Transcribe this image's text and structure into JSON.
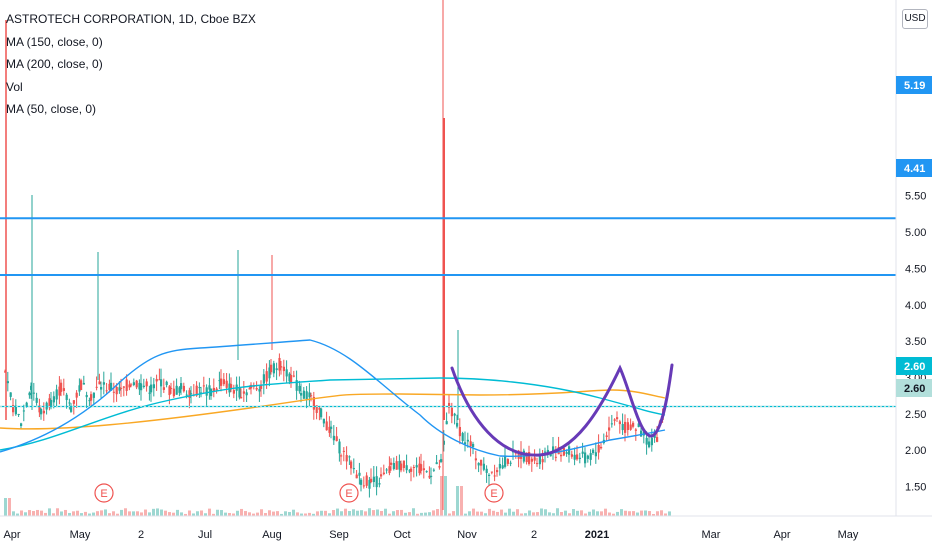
{
  "chart_data": {
    "type": "candlestick",
    "title": "ASTROTECH CORPORATION, 1D, Cboe BZX",
    "currency": "USD",
    "indicators": [
      "MA (150, close, 0)",
      "MA (200, close, 0)",
      "Vol",
      "MA (50, close, 0)"
    ],
    "x_tick_labels": [
      "Apr",
      "May",
      "2",
      "Jul",
      "Aug",
      "Sep",
      "Oct",
      "Nov",
      "2",
      "2021",
      "Mar",
      "Apr",
      "May"
    ],
    "y_tick_labels": [
      "5.50",
      "5.00",
      "4.50",
      "4.00",
      "3.50",
      "3.00",
      "2.50",
      "2.00",
      "1.50"
    ],
    "y_range": [
      1.2,
      5.85
    ],
    "price_labels": [
      {
        "value": "5.19",
        "color": "#2196f3"
      },
      {
        "value": "4.41",
        "color": "#2196f3"
      },
      {
        "value": "2.60",
        "color": "#00bcd4"
      },
      {
        "value": "2.60",
        "color": "#26a69a"
      }
    ],
    "horizontal_levels": [
      {
        "price": 5.19,
        "color": "#2196f3"
      },
      {
        "price": 4.41,
        "color": "#2196f3"
      },
      {
        "price": 2.6,
        "color": "#00bcd4"
      }
    ],
    "earnings_markers": [
      "E",
      "E",
      "E"
    ],
    "colors": {
      "up": "#26a69a",
      "down": "#ef5350",
      "ma50": "#2196f3",
      "ma150": "#00bcd4",
      "ma200": "#f9a825",
      "pattern": "#673ab7"
    }
  }
}
